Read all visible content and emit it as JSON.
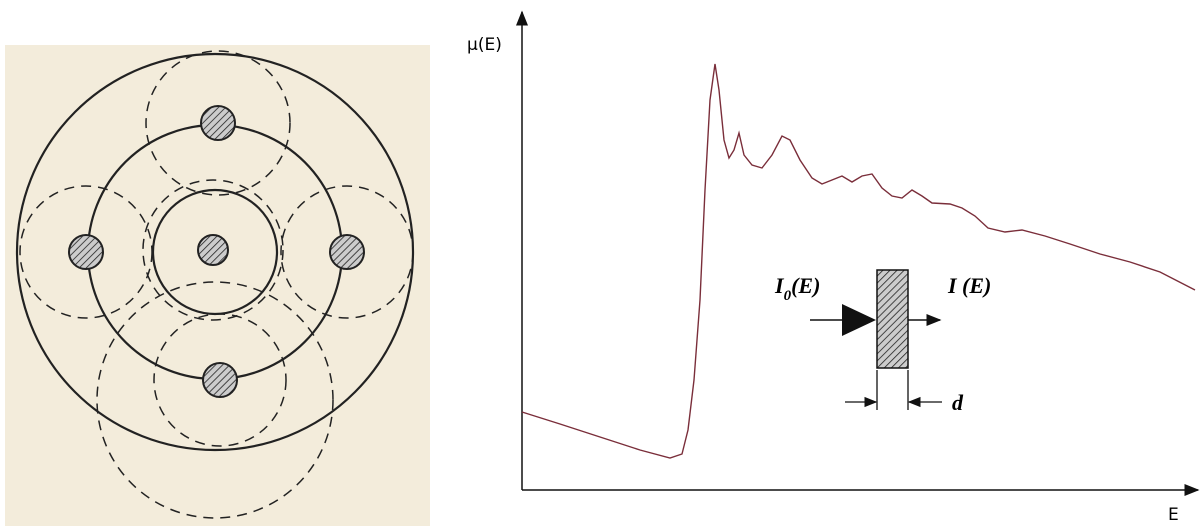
{
  "spectrum": {
    "y_axis_label": "μ(E)",
    "x_axis_label": "E"
  },
  "inset": {
    "incident": {
      "base": "I",
      "subscript": "0",
      "suffix": "(E)"
    },
    "transmitted": "I (E)",
    "thickness": "d"
  }
}
